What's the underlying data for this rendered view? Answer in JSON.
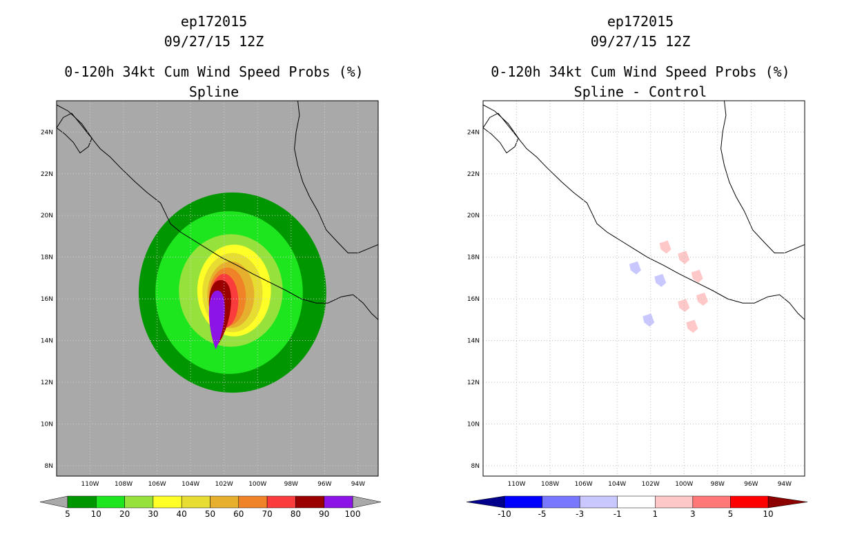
{
  "chart_data": [
    {
      "type": "heatmap",
      "storm_id": "ep172015",
      "datetime": "09/27/15 12Z",
      "title": "0-120h 34kt Cum Wind Speed Probs (%)",
      "subtitle": "Spline",
      "background_color": "#a9a9a9",
      "xlim": [
        -112,
        -92.8
      ],
      "ylim": [
        7.5,
        25.5
      ],
      "x_ticks": [
        -110,
        -108,
        -106,
        -104,
        -102,
        -100,
        -98,
        -96,
        -94
      ],
      "x_tick_labels": [
        "110W",
        "108W",
        "106W",
        "104W",
        "102W",
        "100W",
        "98W",
        "96W",
        "94W"
      ],
      "y_ticks": [
        8,
        10,
        12,
        14,
        16,
        18,
        20,
        22,
        24
      ],
      "y_tick_labels": [
        "8N",
        "10N",
        "12N",
        "14N",
        "16N",
        "18N",
        "20N",
        "22N",
        "24N"
      ],
      "grid": true,
      "colorbar": {
        "labels": [
          "5",
          "10",
          "20",
          "30",
          "40",
          "50",
          "60",
          "70",
          "80",
          "90",
          "100"
        ],
        "colors": [
          "#009600",
          "#1ee61e",
          "#96e13c",
          "#ffff28",
          "#e6dc32",
          "#e6af2d",
          "#f08228",
          "#fa3c3c",
          "#9b0000",
          "#8c14e6"
        ],
        "end_color": "#a9a9a9"
      },
      "contours": [
        {
          "level": 5,
          "color": "#009600",
          "center": [
            -101.5,
            16.3
          ],
          "rx": 5.6,
          "ry": 4.8
        },
        {
          "level": 10,
          "color": "#1ee61e",
          "center": [
            -101.7,
            16.3
          ],
          "rx": 4.4,
          "ry": 3.9
        },
        {
          "level": 20,
          "color": "#96e13c",
          "center": [
            -101.6,
            16.4
          ],
          "rx": 3.1,
          "ry": 2.7
        },
        {
          "level": 30,
          "color": "#ffff28",
          "center": [
            -101.4,
            16.4
          ],
          "rx": 2.2,
          "ry": 2.2
        },
        {
          "level": 40,
          "color": "#e6dc32",
          "center": [
            -101.5,
            16.3
          ],
          "rx": 1.8,
          "ry": 1.9
        },
        {
          "level": 50,
          "color": "#e6af2d",
          "center": [
            -101.6,
            16.2
          ],
          "rx": 1.4,
          "ry": 1.6
        },
        {
          "level": 60,
          "color": "#f08228",
          "center": [
            -101.8,
            16.1
          ],
          "rx": 1.1,
          "ry": 1.4
        },
        {
          "level": 70,
          "color": "#fa3c3c",
          "center": [
            -102.0,
            15.9
          ],
          "rx": 0.85,
          "ry": 1.3
        },
        {
          "level": 80,
          "color": "#9b0000",
          "center": [
            -102.2,
            15.6
          ],
          "rx": 0.7,
          "ry": 1.3
        },
        {
          "level": 90,
          "color": "#8c14e6",
          "center": [
            -102.4,
            15.2
          ],
          "rx": 0.5,
          "ry": 1.2
        }
      ]
    },
    {
      "type": "heatmap",
      "storm_id": "ep172015",
      "datetime": "09/27/15 12Z",
      "title": "0-120h 34kt Cum Wind Speed Probs (%)",
      "subtitle": "Spline - Control",
      "background_color": "#ffffff",
      "xlim": [
        -112,
        -92.8
      ],
      "ylim": [
        7.5,
        25.5
      ],
      "x_ticks": [
        -110,
        -108,
        -106,
        -104,
        -102,
        -100,
        -98,
        -96,
        -94
      ],
      "x_tick_labels": [
        "110W",
        "108W",
        "106W",
        "104W",
        "102W",
        "100W",
        "98W",
        "96W",
        "94W"
      ],
      "y_ticks": [
        8,
        10,
        12,
        14,
        16,
        18,
        20,
        22,
        24
      ],
      "y_tick_labels": [
        "8N",
        "10N",
        "12N",
        "14N",
        "16N",
        "18N",
        "20N",
        "22N",
        "24N"
      ],
      "grid": true,
      "colorbar": {
        "labels": [
          "-10",
          "-5",
          "-3",
          "-1",
          "1",
          "3",
          "5",
          "10"
        ],
        "colors": [
          "#0000ff",
          "#7878ff",
          "#c8c8ff",
          "#ffffff",
          "#ffc8c8",
          "#ff7878",
          "#ff0000"
        ],
        "low_end_color": "#00008c",
        "high_end_color": "#8c0000"
      },
      "anomalies": [
        {
          "lon": -102.9,
          "lat": 17.5,
          "value": -2,
          "color": "#c8c8ff"
        },
        {
          "lon": -101.4,
          "lat": 16.9,
          "value": -2,
          "color": "#c8c8ff"
        },
        {
          "lon": -102.1,
          "lat": 15.0,
          "value": -2,
          "color": "#c8c8ff"
        },
        {
          "lon": -101.1,
          "lat": 18.5,
          "value": 2,
          "color": "#ffc8c8"
        },
        {
          "lon": -100.0,
          "lat": 18.0,
          "value": 2,
          "color": "#ffc8c8"
        },
        {
          "lon": -99.2,
          "lat": 17.1,
          "value": 2,
          "color": "#ffc8c8"
        },
        {
          "lon": -100.0,
          "lat": 15.7,
          "value": 2,
          "color": "#ffc8c8"
        },
        {
          "lon": -99.5,
          "lat": 14.7,
          "value": 2,
          "color": "#ffc8c8"
        },
        {
          "lon": -98.9,
          "lat": 16.0,
          "value": 2,
          "color": "#ffc8c8"
        }
      ]
    }
  ]
}
